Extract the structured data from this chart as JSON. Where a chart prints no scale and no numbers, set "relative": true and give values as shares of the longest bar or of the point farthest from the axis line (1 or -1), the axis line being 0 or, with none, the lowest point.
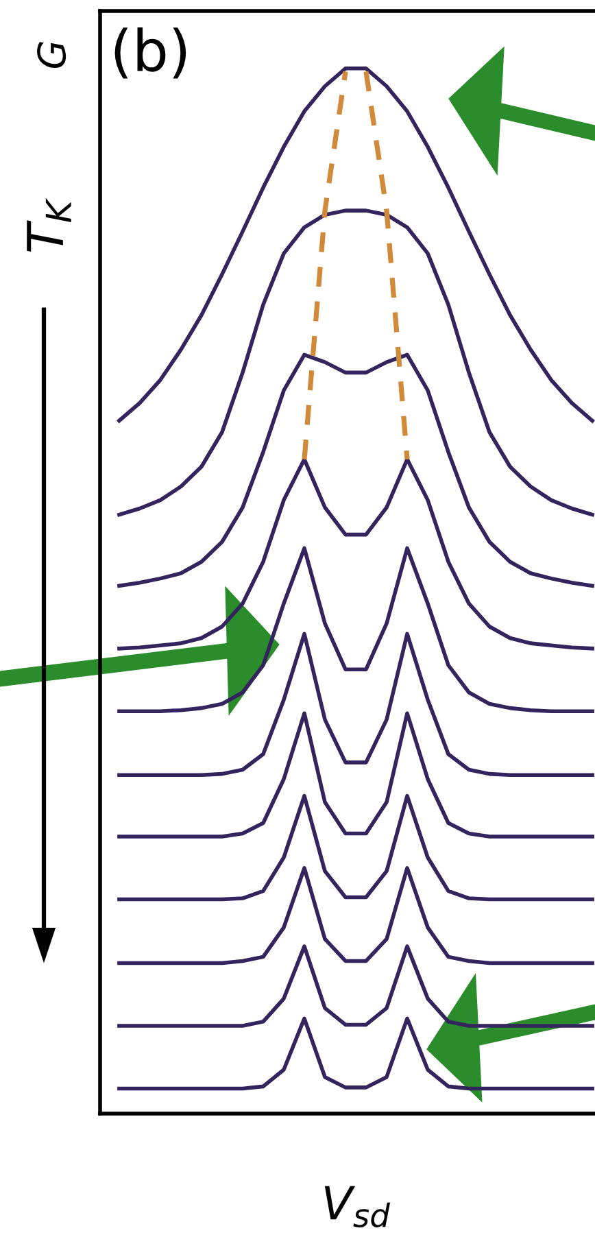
{
  "chart_data": {
    "type": "line",
    "relative": true,
    "title": "(b)",
    "ylabel": "G",
    "xlabel": "V$_{sd}$",
    "annotations": [
      "T$_{K}$"
    ],
    "categories": [
      null,
      null,
      null,
      null,
      null,
      null,
      null,
      null,
      null,
      null,
      null,
      null,
      null,
      null,
      null,
      null,
      null,
      null,
      null,
      null,
      null,
      null,
      null,
      null
    ],
    "series": [
      {
        "color": "#34245e",
        "values": [
          0.663,
          0.68,
          0.702,
          0.731,
          0.764,
          0.803,
          0.844,
          0.886,
          0.925,
          0.959,
          0.983,
          1.0,
          1.0,
          0.983,
          0.959,
          0.925,
          0.886,
          0.844,
          0.803,
          0.764,
          0.731,
          0.702,
          0.68,
          0.663
        ]
      },
      {
        "color": "#34245e",
        "values": [
          0.573,
          0.579,
          0.587,
          0.6,
          0.619,
          0.652,
          0.709,
          0.774,
          0.823,
          0.848,
          0.86,
          0.864,
          0.864,
          0.86,
          0.848,
          0.823,
          0.774,
          0.709,
          0.652,
          0.619,
          0.6,
          0.587,
          0.579,
          0.573
        ]
      },
      {
        "color": "#34245e",
        "values": [
          0.505,
          0.508,
          0.512,
          0.517,
          0.528,
          0.547,
          0.58,
          0.633,
          0.692,
          0.726,
          0.719,
          0.709,
          0.709,
          0.719,
          0.726,
          0.692,
          0.633,
          0.58,
          0.547,
          0.528,
          0.517,
          0.512,
          0.508,
          0.505
        ]
      },
      {
        "color": "#34245e",
        "values": [
          0.445,
          0.446,
          0.448,
          0.45,
          0.455,
          0.466,
          0.488,
          0.528,
          0.587,
          0.626,
          0.58,
          0.554,
          0.554,
          0.58,
          0.626,
          0.587,
          0.528,
          0.488,
          0.466,
          0.455,
          0.45,
          0.448,
          0.446,
          0.445
        ]
      },
      {
        "color": "#34245e",
        "values": [
          0.385,
          0.385,
          0.385,
          0.386,
          0.388,
          0.392,
          0.403,
          0.429,
          0.488,
          0.541,
          0.469,
          0.425,
          0.425,
          0.469,
          0.541,
          0.488,
          0.429,
          0.403,
          0.392,
          0.388,
          0.386,
          0.385,
          0.385,
          0.385
        ]
      },
      {
        "color": "#34245e",
        "values": [
          0.324,
          0.324,
          0.324,
          0.324,
          0.324,
          0.325,
          0.329,
          0.344,
          0.396,
          0.459,
          0.377,
          0.336,
          0.336,
          0.377,
          0.459,
          0.396,
          0.344,
          0.329,
          0.325,
          0.324,
          0.324,
          0.324,
          0.324,
          0.324
        ]
      },
      {
        "color": "#34245e",
        "values": [
          0.265,
          0.265,
          0.265,
          0.265,
          0.265,
          0.265,
          0.268,
          0.278,
          0.32,
          0.383,
          0.298,
          0.268,
          0.268,
          0.298,
          0.383,
          0.32,
          0.278,
          0.268,
          0.265,
          0.265,
          0.265,
          0.265,
          0.265,
          0.265
        ]
      },
      {
        "color": "#34245e",
        "values": [
          0.205,
          0.205,
          0.205,
          0.205,
          0.205,
          0.205,
          0.206,
          0.213,
          0.245,
          0.304,
          0.232,
          0.207,
          0.207,
          0.232,
          0.304,
          0.245,
          0.213,
          0.206,
          0.205,
          0.205,
          0.205,
          0.205,
          0.205,
          0.205
        ]
      },
      {
        "color": "#34245e",
        "values": [
          0.144,
          0.144,
          0.144,
          0.144,
          0.144,
          0.144,
          0.146,
          0.15,
          0.178,
          0.235,
          0.167,
          0.146,
          0.146,
          0.167,
          0.235,
          0.178,
          0.15,
          0.146,
          0.144,
          0.144,
          0.144,
          0.144,
          0.144,
          0.144
        ]
      },
      {
        "color": "#34245e",
        "values": [
          0.084,
          0.084,
          0.084,
          0.084,
          0.084,
          0.084,
          0.084,
          0.088,
          0.11,
          0.16,
          0.101,
          0.085,
          0.085,
          0.101,
          0.16,
          0.11,
          0.088,
          0.084,
          0.084,
          0.084,
          0.084,
          0.084,
          0.084,
          0.084
        ]
      },
      {
        "color": "#34245e",
        "values": [
          0.024,
          0.024,
          0.024,
          0.024,
          0.024,
          0.024,
          0.024,
          0.026,
          0.042,
          0.091,
          0.035,
          0.025,
          0.025,
          0.035,
          0.091,
          0.042,
          0.026,
          0.024,
          0.024,
          0.024,
          0.024,
          0.024,
          0.024,
          0.024
        ]
      },
      {
        "color": "#d08a3a",
        "line_style": "dashed",
        "values": [
          null,
          null,
          null,
          null,
          null,
          null,
          null,
          null,
          null,
          0.626,
          0.864,
          0.997,
          null,
          null,
          null,
          null,
          null,
          null,
          null,
          null,
          null,
          null,
          null,
          null
        ]
      },
      {
        "color": "#d08a3a",
        "line_style": "dashed",
        "values": [
          null,
          null,
          null,
          null,
          null,
          null,
          null,
          null,
          null,
          null,
          null,
          null,
          0.997,
          0.864,
          0.626,
          null,
          null,
          null,
          null,
          null,
          null,
          null,
          null,
          null
        ]
      }
    ]
  }
}
